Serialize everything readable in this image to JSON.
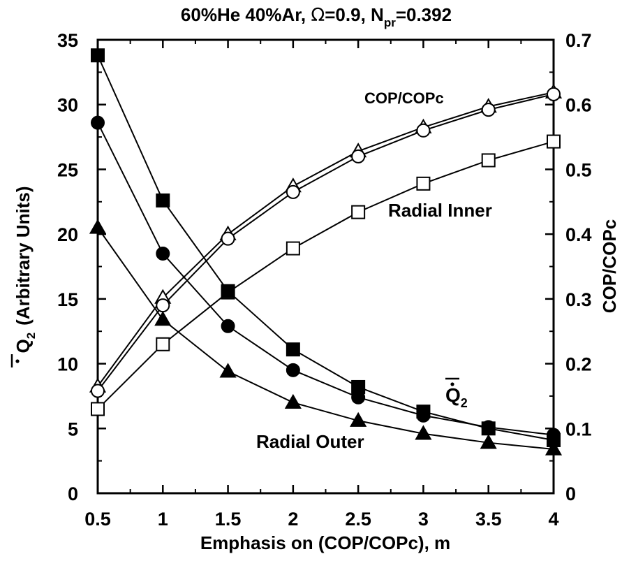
{
  "chart_data": {
    "type": "line",
    "title_parts": [
      "60%He 40%Ar, ",
      "Ω",
      "=0.9, N",
      "pr",
      "=0.392"
    ],
    "xlabel": "Emphasis on (COP/COPc), m",
    "ylabel_left_main": "Q",
    "ylabel_left_sub": "2",
    "ylabel_left_units": "(Arbitrary Units)",
    "ylabel_right": "COP/COPc",
    "x": [
      0.5,
      1,
      1.5,
      2,
      2.5,
      3,
      3.5,
      4
    ],
    "xlim": [
      0.5,
      4
    ],
    "ylim_left": [
      0,
      35
    ],
    "ylim_right": [
      0,
      0.7
    ],
    "xticks": [
      "0.5",
      "1",
      "1.5",
      "2",
      "2.5",
      "3",
      "3.5",
      "4"
    ],
    "yticks_left": [
      "0",
      "5",
      "10",
      "15",
      "20",
      "25",
      "30",
      "35"
    ],
    "yticks_right": [
      "0",
      "0.1",
      "0.2",
      "0.3",
      "0.4",
      "0.5",
      "0.6",
      "0.7"
    ],
    "grid": false,
    "series": [
      {
        "axis": "right",
        "marker": "open-triangle",
        "values": [
          0.165,
          0.302,
          0.4,
          0.474,
          0.528,
          0.565,
          0.597,
          0.619
        ]
      },
      {
        "axis": "right",
        "marker": "open-circle",
        "values": [
          0.158,
          0.29,
          0.393,
          0.465,
          0.52,
          0.56,
          0.592,
          0.616
        ]
      },
      {
        "axis": "right",
        "marker": "open-square",
        "values": [
          0.13,
          0.23,
          0.31,
          0.378,
          0.434,
          0.478,
          0.514,
          0.543
        ]
      },
      {
        "axis": "left",
        "marker": "filled-square",
        "values": [
          33.8,
          22.6,
          15.6,
          11.1,
          8.2,
          6.3,
          5.0,
          4.1
        ]
      },
      {
        "axis": "left",
        "marker": "filled-circle",
        "values": [
          28.6,
          18.5,
          12.9,
          9.5,
          7.4,
          6.0,
          5.1,
          4.5
        ]
      },
      {
        "axis": "left",
        "marker": "filled-triangle",
        "values": [
          20.5,
          13.4,
          9.4,
          7.0,
          5.6,
          4.6,
          3.9,
          3.4
        ]
      }
    ],
    "annotations": {
      "cop": "COP/COPc",
      "radial_inner": "Radial Inner",
      "radial_outer": "Radial Outer",
      "q2_main": "Q",
      "q2_sub": "2"
    }
  }
}
